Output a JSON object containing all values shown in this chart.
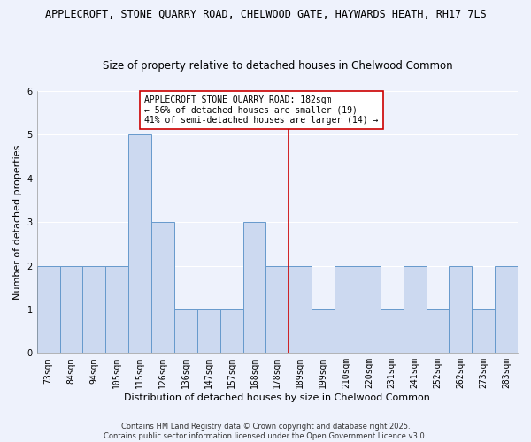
{
  "title": "APPLECROFT, STONE QUARRY ROAD, CHELWOOD GATE, HAYWARDS HEATH, RH17 7LS",
  "subtitle": "Size of property relative to detached houses in Chelwood Common",
  "xlabel": "Distribution of detached houses by size in Chelwood Common",
  "ylabel": "Number of detached properties",
  "categories": [
    "73sqm",
    "84sqm",
    "94sqm",
    "105sqm",
    "115sqm",
    "126sqm",
    "136sqm",
    "147sqm",
    "157sqm",
    "168sqm",
    "178sqm",
    "189sqm",
    "199sqm",
    "210sqm",
    "220sqm",
    "231sqm",
    "241sqm",
    "252sqm",
    "262sqm",
    "273sqm",
    "283sqm"
  ],
  "values": [
    2,
    2,
    2,
    2,
    5,
    3,
    1,
    1,
    1,
    3,
    2,
    2,
    1,
    2,
    2,
    1,
    2,
    1,
    2,
    1,
    2
  ],
  "bar_color": "#ccd9f0",
  "bar_edge_color": "#6699cc",
  "vline_color": "#cc0000",
  "vline_x": 10.5,
  "annotation_title": "APPLECROFT STONE QUARRY ROAD: 182sqm",
  "annotation_line1": "← 56% of detached houses are smaller (19)",
  "annotation_line2": "41% of semi-detached houses are larger (14) →",
  "annotation_color": "#cc0000",
  "ylim": [
    0,
    6
  ],
  "yticks": [
    0,
    1,
    2,
    3,
    4,
    5,
    6
  ],
  "footer": "Contains HM Land Registry data © Crown copyright and database right 2025.\nContains public sector information licensed under the Open Government Licence v3.0.",
  "background_color": "#eef2fc",
  "grid_color": "#ffffff",
  "title_fontsize": 8.5,
  "subtitle_fontsize": 8.5,
  "xlabel_fontsize": 8,
  "ylabel_fontsize": 8,
  "tick_fontsize": 7,
  "annotation_fontsize": 7,
  "footer_fontsize": 6
}
